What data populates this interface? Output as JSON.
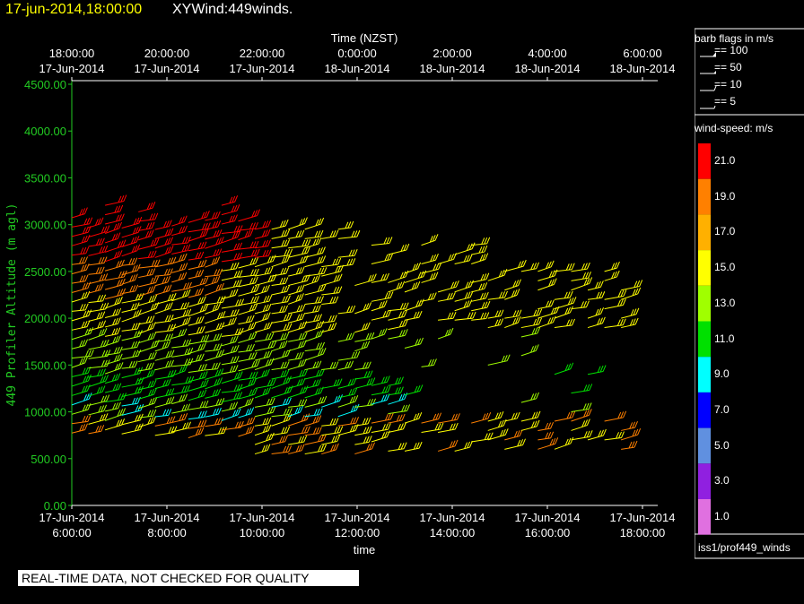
{
  "header": {
    "datetime": "17-jun-2014,18:00:00",
    "product": "XYWind:449winds."
  },
  "footer": {
    "notice": "REAL-TIME DATA, NOT CHECKED FOR QUALITY",
    "source": "iss1/prof449_winds"
  },
  "legend": {
    "barb_title": "barb flags in m/s",
    "barbs": [
      "== 100",
      "== 50",
      "== 10",
      "== 5"
    ],
    "speed_title": "wind-speed: m/s",
    "speed_levels": [
      {
        "label": "21.0",
        "color": "#ff0000"
      },
      {
        "label": "19.0",
        "color": "#ff8000"
      },
      {
        "label": "17.0",
        "color": "#ffb000"
      },
      {
        "label": "15.0",
        "color": "#ffff00"
      },
      {
        "label": "13.0",
        "color": "#a0ff00"
      },
      {
        "label": "11.0",
        "color": "#00e000"
      },
      {
        "label": "9.0",
        "color": "#00ffff"
      },
      {
        "label": "7.0",
        "color": "#0000ff"
      },
      {
        "label": "5.0",
        "color": "#6090e0"
      },
      {
        "label": "3.0",
        "color": "#9020e0"
      },
      {
        "label": "1.0",
        "color": "#e070e0"
      }
    ]
  },
  "chart_data": {
    "type": "scatter",
    "title": "Time (NZST)",
    "xlabel": "time",
    "ylabel": "449 Profiler Altitude (m agl)",
    "x_bottom_ticks": [
      {
        "date": "17-Jun-2014",
        "time": "6:00:00"
      },
      {
        "date": "17-Jun-2014",
        "time": "8:00:00"
      },
      {
        "date": "17-Jun-2014",
        "time": "10:00:00"
      },
      {
        "date": "17-Jun-2014",
        "time": "12:00:00"
      },
      {
        "date": "17-Jun-2014",
        "time": "14:00:00"
      },
      {
        "date": "17-Jun-2014",
        "time": "16:00:00"
      },
      {
        "date": "17-Jun-2014",
        "time": "18:00:00"
      }
    ],
    "x_top_ticks": [
      {
        "time": "18:00:00",
        "date": "17-Jun-2014"
      },
      {
        "time": "20:00:00",
        "date": "17-Jun-2014"
      },
      {
        "time": "22:00:00",
        "date": "17-Jun-2014"
      },
      {
        "time": "0:00:00",
        "date": "18-Jun-2014"
      },
      {
        "time": "2:00:00",
        "date": "18-Jun-2014"
      },
      {
        "time": "4:00:00",
        "date": "18-Jun-2014"
      },
      {
        "time": "6:00:00",
        "date": "18-Jun-2014"
      }
    ],
    "y_ticks": [
      "0.00",
      "500.00",
      "1000.00",
      "1500.00",
      "2000.00",
      "2500.00",
      "3000.00",
      "3500.00",
      "4000.00",
      "4500.00"
    ],
    "ylim": [
      0,
      4500
    ],
    "xlim_hours_utc": [
      6,
      18
    ],
    "grid": false,
    "speed_units": "m/s",
    "profiles": [
      {
        "hour": 6.0,
        "bottom": 800,
        "top": 3300,
        "speed": "mixed"
      },
      {
        "hour": 8.0,
        "bottom": 700,
        "top": 3000,
        "speed": "mixed"
      },
      {
        "hour": 10.0,
        "bottom": 600,
        "top": 3000,
        "speed": "mixed"
      },
      {
        "hour": 12.0,
        "bottom": 600,
        "top": 2900,
        "speed": "mixed"
      },
      {
        "hour": 14.0,
        "bottom": 600,
        "top": 2700,
        "speed": "mixed"
      },
      {
        "hour": 16.0,
        "bottom": 600,
        "top": 2500,
        "speed": "mixed"
      },
      {
        "hour": 17.5,
        "bottom": 700,
        "top": 3000,
        "speed": "mixed"
      }
    ]
  }
}
